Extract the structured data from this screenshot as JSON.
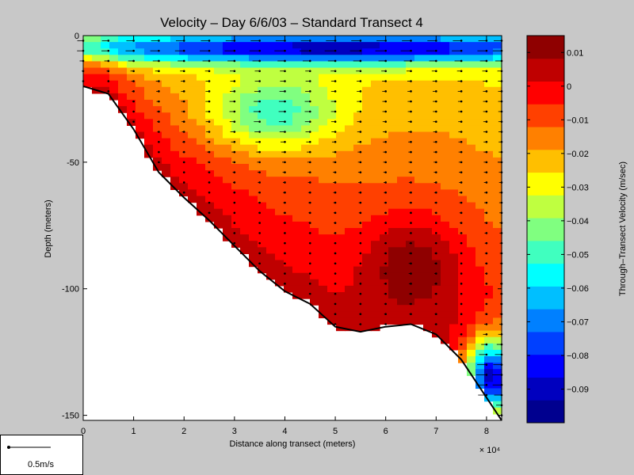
{
  "chart_data": {
    "type": "heatmap",
    "title": "Velocity – Day 6/6/03 – Standard Transect 4",
    "xlabel": "Distance along transect (meters)",
    "ylabel": "Depth (meters)",
    "x_exponent_label": "× 10⁴",
    "xlim": [
      0,
      83000
    ],
    "ylim": [
      -152,
      0
    ],
    "x_ticks": [
      0,
      10000,
      20000,
      30000,
      40000,
      50000,
      60000,
      70000,
      80000
    ],
    "x_tick_labels": [
      "0",
      "1",
      "2",
      "3",
      "4",
      "5",
      "6",
      "7",
      "8"
    ],
    "y_ticks": [
      0,
      -50,
      -100,
      -150
    ],
    "y_tick_labels": [
      "0",
      "-50",
      "-100",
      "-150"
    ],
    "colorbar": {
      "label": "Through–Transect Velocity (m/sec)",
      "min": -0.1,
      "max": 0.015,
      "levels": [
        -0.1,
        -0.095,
        -0.09,
        -0.085,
        -0.08,
        -0.075,
        -0.07,
        -0.065,
        -0.06,
        -0.055,
        -0.05,
        -0.045,
        -0.04,
        -0.035,
        -0.03,
        -0.025,
        -0.02,
        -0.015,
        -0.01,
        -0.005,
        0,
        0.005,
        0.01,
        0.015
      ],
      "ticks": [
        0.01,
        0,
        -0.01,
        -0.02,
        -0.03,
        -0.04,
        -0.05,
        -0.06,
        -0.07,
        -0.08,
        -0.09
      ],
      "tick_labels": [
        "0.01",
        "0",
        "−0.01",
        "−0.02",
        "−0.03",
        "−0.04",
        "−0.05",
        "−0.06",
        "−0.07",
        "−0.08",
        "−0.09"
      ]
    },
    "colors": [
      "#00008f",
      "#0000bf",
      "#0000ff",
      "#0040ff",
      "#0080ff",
      "#00bfff",
      "#00ffff",
      "#40ffbf",
      "#80ff80",
      "#bfff40",
      "#ffff00",
      "#ffbf00",
      "#ff8000",
      "#ff4000",
      "#ff0000",
      "#bf0000",
      "#8f0000"
    ],
    "bottom_profile": {
      "x": [
        0,
        5000,
        10000,
        15000,
        20000,
        25000,
        30000,
        35000,
        40000,
        45000,
        50000,
        55000,
        60000,
        65000,
        70000,
        75000,
        80000,
        83000
      ],
      "depth": [
        -20,
        -23,
        -37,
        -54,
        -64,
        -73,
        -83,
        -93,
        -101,
        -106,
        -115,
        -117,
        -115,
        -114,
        -118,
        -128,
        -143,
        -152
      ]
    },
    "velocity_features": [
      {
        "x": 65000,
        "y": -92,
        "value": 0.013,
        "radius_x": 9000,
        "radius_y": 18
      },
      {
        "x": 2000,
        "y": -12,
        "value": 0.0,
        "radius_x": 4000,
        "radius_y": 10
      },
      {
        "x": 38000,
        "y": -30,
        "value": -0.05,
        "radius_x": 12000,
        "radius_y": 14
      },
      {
        "x": 50000,
        "y": -5,
        "value": -0.09,
        "radius_x": 60000,
        "radius_y": 6
      },
      {
        "x": 81000,
        "y": -135,
        "value": -0.09,
        "radius_x": 5000,
        "radius_y": 15
      }
    ],
    "vector_stations_x": [
      0,
      5000,
      10000,
      15000,
      20000,
      25000,
      30000,
      35000,
      40000,
      45000,
      50000,
      55000,
      60000,
      65000,
      70000,
      75000,
      80000,
      83000
    ],
    "vector_bin_spacing": 4
  },
  "legend": {
    "scale_label": "0.5m/s"
  }
}
